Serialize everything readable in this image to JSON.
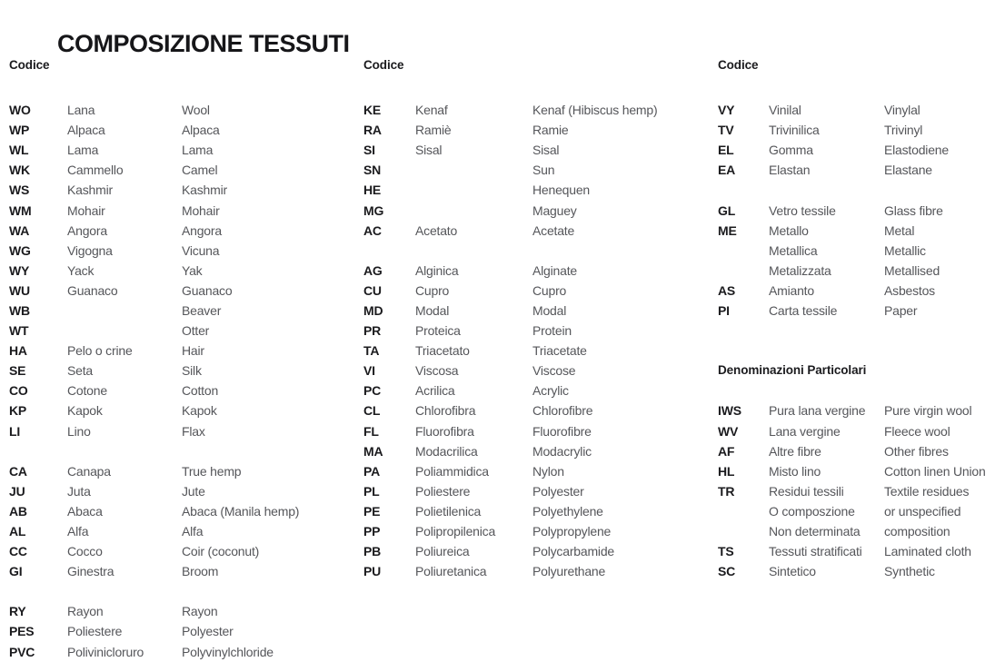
{
  "title": "COMPOSIZIONE TESSUTI",
  "columns": [
    {
      "blocks": [
        {
          "type": "header",
          "text": "Codice"
        },
        {
          "type": "rows",
          "rows": [
            [
              "WO",
              "Lana",
              "Wool"
            ],
            [
              "WP",
              "Alpaca",
              "Alpaca"
            ],
            [
              "WL",
              "Lama",
              "Lama"
            ],
            [
              "WK",
              "Cammello",
              "Camel"
            ],
            [
              "WS",
              "Kashmir",
              "Kashmir"
            ],
            [
              "WM",
              "Mohair",
              "Mohair"
            ],
            [
              "WA",
              "Angora",
              "Angora"
            ],
            [
              "WG",
              "Vigogna",
              "Vicuna"
            ],
            [
              "WY",
              "Yack",
              "Yak"
            ],
            [
              "WU",
              "Guanaco",
              "Guanaco"
            ],
            [
              "WB",
              "",
              "Beaver"
            ],
            [
              "WT",
              "",
              "Otter"
            ],
            [
              "HA",
              "Pelo o crine",
              "Hair"
            ],
            [
              "SE",
              "Seta",
              "Silk"
            ],
            [
              "CO",
              "Cotone",
              "Cotton"
            ],
            [
              "KP",
              "Kapok",
              "Kapok"
            ],
            [
              "LI",
              "Lino",
              "Flax"
            ]
          ]
        },
        {
          "type": "gap"
        },
        {
          "type": "rows",
          "rows": [
            [
              "CA",
              "Canapa",
              "True hemp"
            ],
            [
              "JU",
              "Juta",
              "Jute"
            ],
            [
              "AB",
              "Abaca",
              "Abaca (Manila hemp)"
            ],
            [
              "AL",
              "Alfa",
              "Alfa"
            ],
            [
              "CC",
              "Cocco",
              "Coir (coconut)"
            ],
            [
              "GI",
              "Ginestra",
              "Broom"
            ]
          ]
        },
        {
          "type": "gap"
        },
        {
          "type": "rows",
          "rows": [
            [
              "RY",
              "Rayon",
              "Rayon"
            ],
            [
              "PES",
              "Poliestere",
              "Polyester"
            ],
            [
              "PVC",
              "Polivinicloruro",
              "Polyvinylchloride"
            ]
          ]
        }
      ]
    },
    {
      "blocks": [
        {
          "type": "header",
          "text": "Codice"
        },
        {
          "type": "rows",
          "rows": [
            [
              "KE",
              "Kenaf",
              "Kenaf (Hibiscus hemp)"
            ],
            [
              "RA",
              "Ramiè",
              "Ramie"
            ],
            [
              "SI",
              "Sisal",
              "Sisal"
            ],
            [
              "SN",
              "",
              "Sun"
            ],
            [
              "HE",
              "",
              "Henequen"
            ],
            [
              "MG",
              "",
              "Maguey"
            ],
            [
              "AC",
              "Acetato",
              "Acetate"
            ]
          ]
        },
        {
          "type": "gap"
        },
        {
          "type": "rows",
          "rows": [
            [
              "AG",
              "Alginica",
              "Alginate"
            ],
            [
              "CU",
              "Cupro",
              "Cupro"
            ],
            [
              "MD",
              "Modal",
              "Modal"
            ],
            [
              "PR",
              "Proteica",
              "Protein"
            ],
            [
              "TA",
              "Triacetato",
              "Triacetate"
            ],
            [
              "VI",
              "Viscosa",
              "Viscose"
            ],
            [
              "PC",
              "Acrilica",
              "Acrylic"
            ],
            [
              "CL",
              "Chlorofibra",
              "Chlorofibre"
            ],
            [
              "FL",
              "Fluorofibra",
              "Fluorofibre"
            ],
            [
              "MA",
              "Modacrilica",
              "Modacrylic"
            ],
            [
              "PA",
              "Poliammidica",
              "Nylon"
            ],
            [
              "PL",
              "Poliestere",
              "Polyester"
            ],
            [
              "PE",
              "Polietilenica",
              "Polyethylene"
            ],
            [
              "PP",
              "Polipropilenica",
              "Polypropylene"
            ],
            [
              "PB",
              "Poliureica",
              "Polycarbamide"
            ],
            [
              "PU",
              "Poliuretanica",
              "Polyurethane"
            ]
          ]
        }
      ]
    },
    {
      "blocks": [
        {
          "type": "header",
          "text": "Codice"
        },
        {
          "type": "rows",
          "rows": [
            [
              "VY",
              "Vinilal",
              "Vinylal"
            ],
            [
              "TV",
              "Trivinilica",
              "Trivinyl"
            ],
            [
              "EL",
              "Gomma",
              "Elastodiene"
            ],
            [
              "EA",
              "Elastan",
              "Elastane"
            ]
          ]
        },
        {
          "type": "gap"
        },
        {
          "type": "rows",
          "rows": [
            [
              "GL",
              "Vetro tessile",
              "Glass fibre"
            ],
            [
              "ME",
              "Metallo",
              "Metal"
            ],
            [
              "",
              "Metallica",
              "Metallic"
            ],
            [
              "",
              "Metalizzata",
              "Metallised"
            ],
            [
              "AS",
              "Amianto",
              "Asbestos"
            ],
            [
              "PI",
              "Carta tessile",
              "Paper"
            ]
          ]
        },
        {
          "type": "gap"
        },
        {
          "type": "gap"
        },
        {
          "type": "subheader",
          "text": "Denominazioni Particolari"
        },
        {
          "type": "gap"
        },
        {
          "type": "rows",
          "rows": [
            [
              "IWS",
              "Pura lana vergine",
              "Pure virgin wool"
            ],
            [
              "WV",
              "Lana vergine",
              "Fleece wool"
            ],
            [
              "AF",
              "Altre fibre",
              "Other fibres"
            ],
            [
              "HL",
              "Misto lino",
              "Cotton linen Union"
            ],
            [
              "TR",
              "Residui tessili",
              "Textile residues"
            ],
            [
              "",
              "O composzione",
              "or unspecified"
            ],
            [
              "",
              "Non determinata",
              "composition"
            ],
            [
              "TS",
              "Tessuti stratificati",
              "Laminated cloth"
            ],
            [
              "SC",
              "Sintetico",
              "Synthetic"
            ]
          ]
        }
      ]
    }
  ]
}
